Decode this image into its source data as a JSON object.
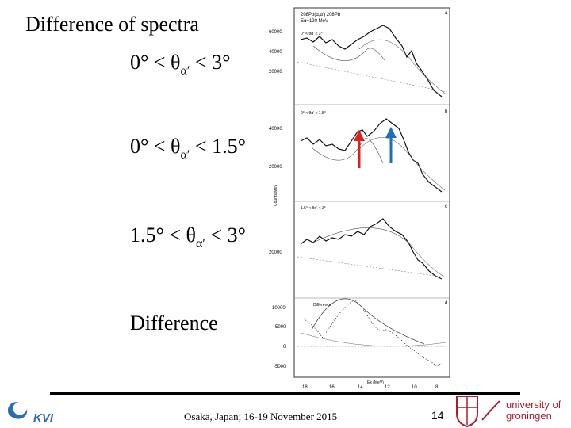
{
  "slide": {
    "title": "Difference of spectra",
    "conditions": [
      {
        "prefix": "0° < θ",
        "sub": "α′",
        "suffix": " < 3°"
      },
      {
        "prefix": "0° < θ",
        "sub": "α′",
        "suffix": " < 1.5°"
      },
      {
        "prefix": "1.5° < θ",
        "sub": "α′",
        "suffix": " < 3°"
      }
    ],
    "difference_label": "Difference"
  },
  "figure": {
    "panel_a": {
      "header": "208Pb(α,α′) 208Pb",
      "energy": "Eα=120 MeV",
      "range": "0° < θα′ < 3°",
      "letter": "a",
      "ticks": [
        "60000",
        "40000",
        "20000"
      ]
    },
    "panel_b": {
      "range": "0° < θα′ < 1.5°",
      "letter": "b",
      "ticks": [
        "40000",
        "20000"
      ]
    },
    "panel_c": {
      "range": "1.5° < θα′ < 3°",
      "letter": "c",
      "ticks": [
        "20000"
      ]
    },
    "panel_d": {
      "legend": "Difference",
      "letter": "d",
      "ticks": [
        "10000",
        "5000",
        "0",
        "-5000"
      ]
    },
    "y_axis_label": "Counts/MeV",
    "x_axis_label": "Ex (MeV)",
    "x_ticks": [
      "18",
      "16",
      "14",
      "12",
      "10",
      "8"
    ],
    "arrow_colors": {
      "red": "#e02020",
      "blue": "#1e6fbf"
    }
  },
  "footer": {
    "text": "Osaka, Japan; 16-19 November 2015",
    "page_number": "14"
  },
  "logos": {
    "kvi": "KVI",
    "university_line1": "university of",
    "university_line2": "groningen"
  }
}
